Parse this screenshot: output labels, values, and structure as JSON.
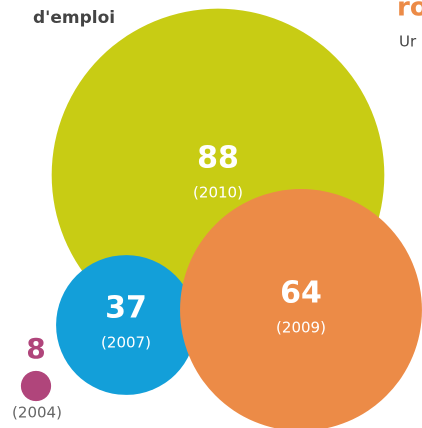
{
  "chart_data": {
    "type": "bubble",
    "title": "d'emploi",
    "annotations": [
      "ro",
      "Ur"
    ],
    "categories": [
      "(2010)",
      "(2009)",
      "(2007)",
      "(2004)"
    ],
    "values": [
      88,
      64,
      37,
      8
    ],
    "colors": [
      "#c8cc14",
      "#ec8b47",
      "#139fd9",
      "#b0457b"
    ]
  }
}
